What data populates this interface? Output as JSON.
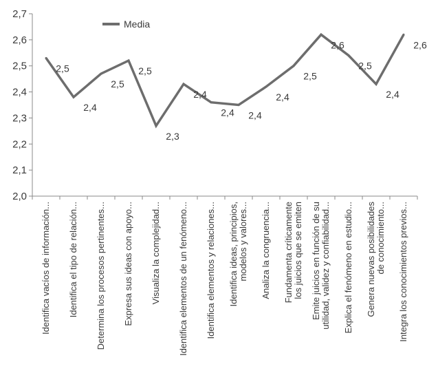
{
  "chart_data": {
    "type": "line",
    "title": "",
    "xlabel": "",
    "ylabel": "",
    "ylim": [
      2.0,
      2.7
    ],
    "yticks": [
      "2,0",
      "2,1",
      "2,2",
      "2,3",
      "2,4",
      "2,5",
      "2,6",
      "2,7"
    ],
    "grid": false,
    "legend_position": "top-left",
    "line_color": "#6d6d6d",
    "categories": [
      [
        "Identifica vacíos de información..."
      ],
      [
        "Identifica el tipo de relación..."
      ],
      [
        "Determina los procesos pertinentes..."
      ],
      [
        "Expresa sus ideas con apoyo..."
      ],
      [
        "Visualiza la complejidad..."
      ],
      [
        "Identifica elementos de un fenómeno..."
      ],
      [
        "Identifica elementos y relaciones..."
      ],
      [
        "Identifica ideas, principios,",
        "modelos y valores..."
      ],
      [
        "Analiza la congruencia..."
      ],
      [
        "Fundamenta críticamente",
        "los juicios que se emiten"
      ],
      [
        "Emite juicios en función de su",
        "utilidad, validez y confiabilidad..."
      ],
      [
        "Explica el fenómeno en estudio..."
      ],
      [
        "Genera nuevas posibilidades",
        "de conocimiento..."
      ],
      [
        "Integra los conocimientos previos..."
      ]
    ],
    "series": [
      {
        "name": "Media",
        "values": [
          2.53,
          2.38,
          2.47,
          2.52,
          2.27,
          2.43,
          2.36,
          2.35,
          2.42,
          2.5,
          2.62,
          2.54,
          2.43,
          2.62
        ],
        "labels": [
          "2,5",
          "2,4",
          "2,5",
          "2,5",
          "2,3",
          "2,4",
          "2,4",
          "2,4",
          "2,4",
          "2,5",
          "2,6",
          "2,5",
          "2,4",
          "2,6"
        ]
      }
    ]
  }
}
